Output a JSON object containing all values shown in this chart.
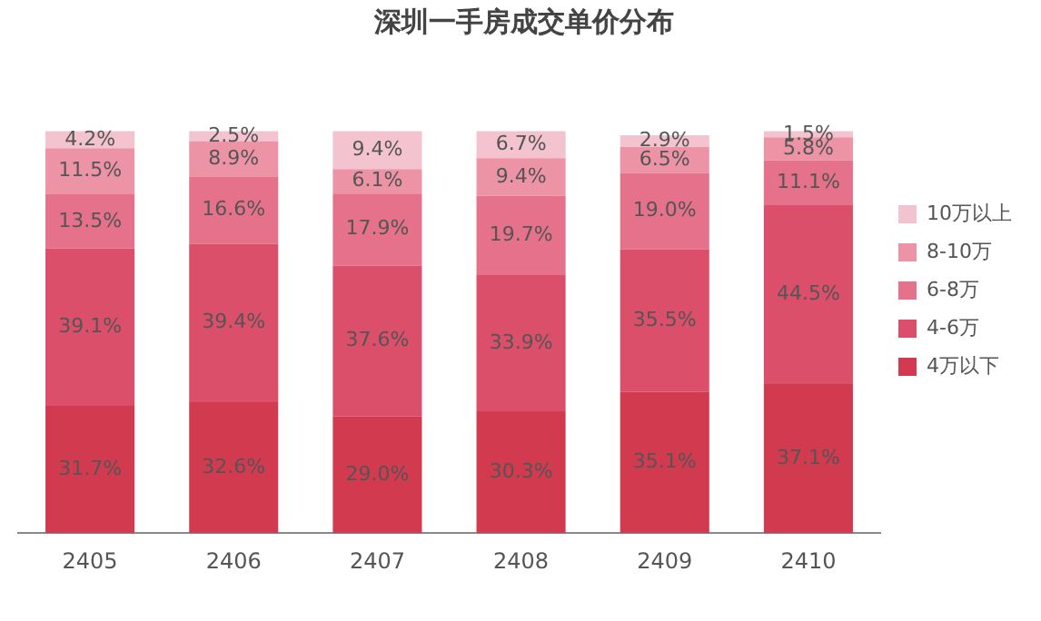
{
  "chart_data": {
    "type": "bar",
    "title": "深圳一手房成交单价分布",
    "stacked": true,
    "legend": "right",
    "grid": false,
    "categories": [
      "2405",
      "2406",
      "2407",
      "2408",
      "2409",
      "2410"
    ],
    "series": [
      {
        "name": "4万以下",
        "color": "#d23a50",
        "values": [
          31.7,
          32.6,
          29.0,
          30.3,
          35.1,
          37.1
        ],
        "value_labels": [
          "31.7%",
          "32.6%",
          "29.0%",
          "30.3%",
          "35.1%",
          "37.1%"
        ]
      },
      {
        "name": "4-6万",
        "color": "#dc4f6a",
        "values": [
          39.1,
          39.4,
          37.6,
          33.9,
          35.5,
          44.5
        ],
        "value_labels": [
          "39.1%",
          "39.4%",
          "37.6%",
          "33.9%",
          "35.5%",
          "44.5%"
        ]
      },
      {
        "name": "6-8万",
        "color": "#e5718a",
        "values": [
          13.5,
          16.6,
          17.9,
          19.7,
          19.0,
          11.1
        ],
        "value_labels": [
          "13.5%",
          "16.6%",
          "17.9%",
          "19.7%",
          "19.0%",
          "11.1%"
        ]
      },
      {
        "name": "8-10万",
        "color": "#ec93a6",
        "values": [
          11.5,
          8.9,
          6.1,
          9.4,
          6.5,
          5.8
        ],
        "value_labels": [
          "11.5%",
          "8.9%",
          "6.1%",
          "9.4%",
          "6.5%",
          "5.8%"
        ]
      },
      {
        "name": "10万以上",
        "color": "#f3c4cf",
        "values": [
          4.2,
          2.5,
          9.4,
          6.7,
          2.9,
          1.5
        ],
        "value_labels": [
          "4.2%",
          "2.5%",
          "9.4%",
          "6.7%",
          "2.9%",
          "1.5%"
        ]
      }
    ]
  }
}
